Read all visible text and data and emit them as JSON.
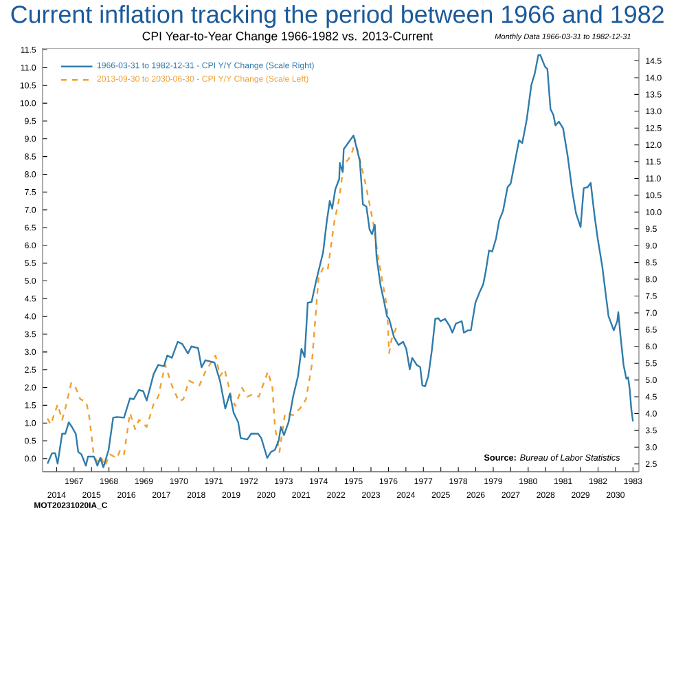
{
  "chart_data": {
    "type": "line",
    "title": "Current inflation tracking the period between 1966 and 1982",
    "subtitle": "CPI Year-to-Year Change 1966-1982 vs. 2013-Current",
    "annotations": [
      "Monthly Data 1966-03-31 to 1982-12-31",
      "**Source:** *Bureau of Labor Statistics*",
      "MOT20231020IA_C"
    ],
    "x2lim": [
      2013.6,
      2030.67
    ],
    "x2ticks": [
      2014,
      2015,
      2016,
      2017,
      2018,
      2019,
      2020,
      2021,
      2022,
      2023,
      2024,
      2025,
      2026,
      2027,
      2028,
      2029,
      2030
    ],
    "xlim": [
      1966.1,
      1983.17
    ],
    "xticks": [
      1967,
      1968,
      1969,
      1970,
      1971,
      1972,
      1973,
      1974,
      1975,
      1976,
      1977,
      1978,
      1979,
      1980,
      1981,
      1982,
      1983
    ],
    "ylim": [
      -0.37,
      11.55
    ],
    "yticks": [
      {
        "value": 0,
        "label": "0.0"
      },
      0.5,
      {
        "value": 1,
        "label": "1.0"
      },
      1.5,
      {
        "value": 2,
        "label": "2.0"
      },
      2.5,
      {
        "value": 3,
        "label": "3.0"
      },
      3.5,
      {
        "value": 4,
        "label": "4.0"
      },
      4.5,
      {
        "value": 5,
        "label": "5.0"
      },
      5.5,
      {
        "value": 6,
        "label": "6.0"
      },
      6.5,
      {
        "value": 7,
        "label": "7.0"
      },
      7.5,
      {
        "value": 8,
        "label": "8.0"
      },
      8.5,
      {
        "value": 9,
        "label": "9.0"
      },
      9.5,
      {
        "value": 10,
        "label": "10.0"
      },
      10.5,
      {
        "value": 11,
        "label": "11.0"
      },
      11.5
    ],
    "y2lim": [
      2.27,
      14.88
    ],
    "y2ticks": [
      2.5,
      {
        "value": 3,
        "label": "3.0"
      },
      3.5,
      {
        "value": 4,
        "label": "4.0"
      },
      4.5,
      {
        "value": 5,
        "label": "5.0"
      },
      5.5,
      {
        "value": 6,
        "label": "6.0"
      },
      6.5,
      {
        "value": 7,
        "label": "7.0"
      },
      7.5,
      {
        "value": 8,
        "label": "8.0"
      },
      8.5,
      {
        "value": 9,
        "label": "9.0"
      },
      9.5,
      {
        "value": 10,
        "label": "10.0"
      },
      10.5,
      {
        "value": 11,
        "label": "11.0"
      },
      11.5,
      {
        "value": 12,
        "label": "12.0"
      },
      12.5,
      {
        "value": 13,
        "label": "13.0"
      },
      13.5,
      {
        "value": 14,
        "label": "14.0"
      },
      14.5
    ],
    "legend": "top left",
    "series": [
      {
        "name": "1966-03-31 to 1982-12-31 - CPI Y/Y Change (Scale Right)",
        "color": "#2e7bab",
        "axis": "y2",
        "line_style": "solid",
        "x": [
          1966.24,
          1966.37,
          1966.46,
          1966.53,
          1966.66,
          1966.75,
          1966.85,
          1966.94,
          1967.05,
          1967.12,
          1967.21,
          1967.34,
          1967.4,
          1967.57,
          1967.67,
          1967.75,
          1967.84,
          1967.99,
          1968.12,
          1968.23,
          1968.43,
          1968.6,
          1968.71,
          1968.85,
          1968.98,
          1969.08,
          1969.28,
          1969.41,
          1969.57,
          1969.67,
          1969.8,
          1969.97,
          1970.1,
          1970.26,
          1970.36,
          1970.55,
          1970.65,
          1970.76,
          1971.02,
          1971.18,
          1971.33,
          1971.46,
          1971.57,
          1971.7,
          1971.77,
          1971.96,
          1972.07,
          1972.27,
          1972.36,
          1972.53,
          1972.64,
          1972.75,
          1972.86,
          1972.92,
          1973.01,
          1973.14,
          1973.27,
          1973.41,
          1973.51,
          1973.6,
          1973.69,
          1973.8,
          1973.93,
          1974.13,
          1974.23,
          1974.32,
          1974.39,
          1974.48,
          1974.59,
          1974.61,
          1974.69,
          1974.72,
          1975.0,
          1975.18,
          1975.27,
          1975.37,
          1975.46,
          1975.53,
          1975.61,
          1975.66,
          1975.77,
          1975.87,
          1975.96,
          1976.02,
          1976.16,
          1976.29,
          1976.42,
          1976.51,
          1976.61,
          1976.68,
          1976.81,
          1976.91,
          1976.97,
          1977.05,
          1977.14,
          1977.24,
          1977.34,
          1977.43,
          1977.49,
          1977.62,
          1977.75,
          1977.83,
          1977.93,
          1978.1,
          1978.16,
          1978.28,
          1978.36,
          1978.49,
          1978.62,
          1978.71,
          1978.78,
          1978.88,
          1978.97,
          1979.08,
          1979.17,
          1979.28,
          1979.41,
          1979.5,
          1979.6,
          1979.74,
          1979.83,
          1979.96,
          1980.09,
          1980.19,
          1980.29,
          1980.35,
          1980.48,
          1980.55,
          1980.64,
          1980.72,
          1980.78,
          1980.88,
          1981.0,
          1981.13,
          1981.27,
          1981.37,
          1981.5,
          1981.59,
          1981.7,
          1981.79,
          1981.9,
          1981.99,
          1982.12,
          1982.21,
          1982.3,
          1982.38,
          1982.45,
          1982.55,
          1982.58,
          1982.64,
          1982.73,
          1982.81,
          1982.86,
          1982.91,
          1982.95,
          1983.0
        ],
        "values": [
          2.51,
          2.82,
          2.82,
          2.51,
          3.4,
          3.4,
          3.74,
          3.6,
          3.4,
          2.86,
          2.79,
          2.45,
          2.72,
          2.72,
          2.45,
          2.68,
          2.4,
          2.92,
          3.88,
          3.9,
          3.88,
          4.45,
          4.43,
          4.7,
          4.67,
          4.39,
          5.18,
          5.45,
          5.41,
          5.73,
          5.66,
          6.14,
          6.07,
          5.79,
          6.0,
          5.95,
          5.38,
          5.59,
          5.52,
          4.97,
          4.15,
          4.59,
          4.02,
          3.74,
          3.27,
          3.23,
          3.4,
          3.4,
          3.27,
          2.68,
          2.86,
          2.92,
          3.2,
          3.6,
          3.36,
          3.74,
          4.5,
          5.11,
          5.93,
          5.68,
          7.3,
          7.32,
          7.95,
          8.8,
          9.68,
          10.33,
          10.1,
          10.68,
          10.98,
          11.46,
          11.19,
          11.87,
          12.28,
          11.53,
          10.23,
          10.16,
          9.48,
          9.34,
          9.62,
          8.66,
          7.84,
          7.36,
          6.89,
          6.82,
          6.27,
          6.04,
          6.14,
          5.93,
          5.32,
          5.66,
          5.45,
          5.38,
          4.84,
          4.81,
          5.11,
          5.86,
          6.82,
          6.84,
          6.75,
          6.82,
          6.61,
          6.41,
          6.68,
          6.75,
          6.41,
          6.48,
          6.48,
          7.3,
          7.64,
          7.84,
          8.2,
          8.86,
          8.82,
          9.21,
          9.75,
          10.03,
          10.74,
          10.85,
          11.39,
          12.14,
          12.05,
          12.76,
          13.78,
          14.13,
          14.67,
          14.67,
          14.33,
          14.26,
          13.06,
          12.9,
          12.58,
          12.69,
          12.49,
          11.67,
          10.57,
          9.96,
          9.55,
          10.71,
          10.74,
          10.87,
          9.89,
          9.21,
          8.39,
          7.64,
          6.9,
          6.68,
          6.48,
          6.75,
          7.02,
          6.34,
          5.45,
          5.04,
          5.08,
          4.7,
          4.15,
          3.77
        ]
      },
      {
        "name": "2013-09-30 to 2030-06-30 - CPI Y/Y Change (Scale Left)",
        "color": "#f0a030",
        "axis": "x2",
        "line_style": "dashed",
        "x": [
          2013.74,
          2013.83,
          2014.03,
          2014.16,
          2014.25,
          2014.42,
          2014.55,
          2014.68,
          2014.85,
          2014.94,
          2015.07,
          2015.17,
          2015.27,
          2015.38,
          2015.53,
          2015.73,
          2015.82,
          2015.93,
          2016.1,
          2016.25,
          2016.36,
          2016.58,
          2016.78,
          2016.91,
          2017.11,
          2017.3,
          2017.5,
          2017.63,
          2017.79,
          2017.92,
          2018.09,
          2018.26,
          2018.55,
          2018.68,
          2018.81,
          2019.0,
          2019.11,
          2019.31,
          2019.46,
          2019.59,
          2019.79,
          2020.05,
          2020.18,
          2020.25,
          2020.38,
          2020.54,
          2020.77,
          2020.97,
          2021.14,
          2021.3,
          2021.5,
          2021.63,
          2021.76,
          2021.95,
          2022.09,
          2022.22,
          2022.35,
          2022.48,
          2022.54,
          2022.68,
          2022.81,
          2022.93,
          2023.07,
          2023.2,
          2023.33,
          2023.46,
          2023.52,
          2023.59,
          2023.72
        ],
        "values": [
          1.13,
          0.96,
          1.52,
          1.09,
          1.41,
          2.13,
          1.99,
          1.67,
          1.6,
          1.15,
          0.05,
          -0.08,
          0.05,
          -0.21,
          0.12,
          0.01,
          0.24,
          0.12,
          1.28,
          0.83,
          1.09,
          0.89,
          1.54,
          1.74,
          2.64,
          2.06,
          1.61,
          1.67,
          2.19,
          2.13,
          2.06,
          2.45,
          2.9,
          2.32,
          2.51,
          1.74,
          1.48,
          1.99,
          1.74,
          1.8,
          1.74,
          2.45,
          1.99,
          0.89,
          0.18,
          1.28,
          1.22,
          1.41,
          1.67,
          2.58,
          5.1,
          5.36,
          5.3,
          6.66,
          7.31,
          8.28,
          8.41,
          8.67,
          8.99,
          8.41,
          7.89,
          7.31,
          6.6,
          5.69,
          4.97,
          4.26,
          2.97,
          3.35,
          3.68
        ]
      }
    ]
  }
}
